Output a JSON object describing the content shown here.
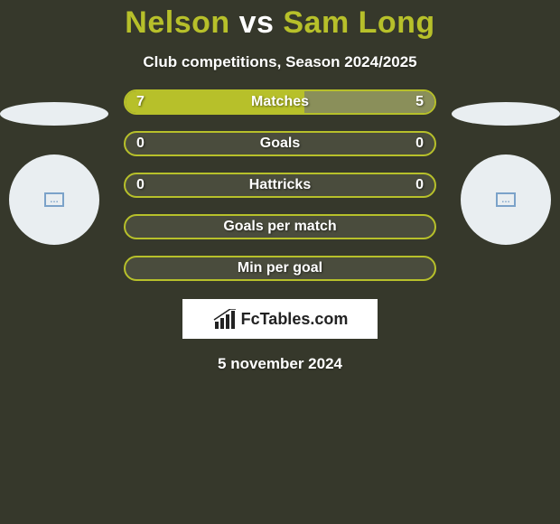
{
  "background_color": "#36382b",
  "title": {
    "left": "Nelson",
    "vs": " vs ",
    "right": "Sam Long",
    "left_color": "#b7c02a",
    "vs_color": "#ffffff",
    "right_color": "#b7c02a",
    "fontsize": 34
  },
  "subtitle": {
    "text": "Club competitions, Season 2024/2025",
    "color": "#ffffff",
    "fontsize": 17
  },
  "players": {
    "left": {
      "ellipse_color": "#e9eef1",
      "circle_color": "#e9eef1",
      "icon_border": "#7ba2c9",
      "icon_text": "…"
    },
    "right": {
      "ellipse_color": "#e9eef1",
      "circle_color": "#e9eef1",
      "icon_border": "#7ba2c9",
      "icon_text": "…"
    }
  },
  "rows": [
    {
      "label": "Matches",
      "left": "7",
      "right": "5",
      "left_pct": 58,
      "right_pct": 42,
      "show_vals": true
    },
    {
      "label": "Goals",
      "left": "0",
      "right": "0",
      "left_pct": 0,
      "right_pct": 0,
      "show_vals": true
    },
    {
      "label": "Hattricks",
      "left": "0",
      "right": "0",
      "left_pct": 0,
      "right_pct": 0,
      "show_vals": true
    },
    {
      "label": "Goals per match",
      "left": "",
      "right": "",
      "left_pct": 0,
      "right_pct": 0,
      "show_vals": false
    },
    {
      "label": "Min per goal",
      "left": "",
      "right": "",
      "left_pct": 0,
      "right_pct": 0,
      "show_vals": false
    }
  ],
  "row_style": {
    "border_color": "#b7c02a",
    "bg_color": "#4a4c3d",
    "fill_left_color": "#b7c02a",
    "fill_right_color": "#8a8f5a",
    "text_color": "#ffffff",
    "label_fontsize": 16
  },
  "logo": {
    "text": "FcTables.com",
    "box_bg": "#ffffff",
    "text_color": "#222222",
    "chart_color": "#222222"
  },
  "date": {
    "text": "5 november 2024",
    "color": "#ffffff",
    "fontsize": 17
  }
}
